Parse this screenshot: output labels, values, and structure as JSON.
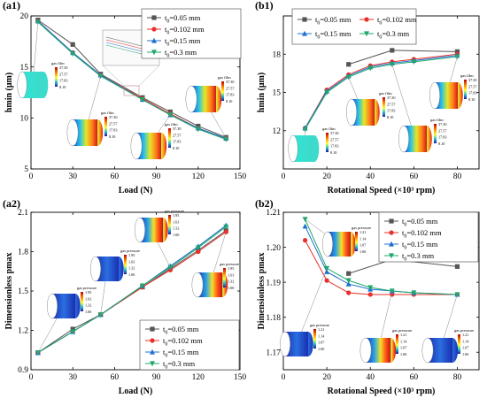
{
  "figure": {
    "colors": {
      "s1": "#555555",
      "s2": "#e8302a",
      "s3": "#1f6fd0",
      "s4": "#1fa86a",
      "axis": "#000000",
      "accent": "#c08080"
    },
    "inset_annotations": {
      "film_label": "gas film",
      "film_ticks": [
        "37.30",
        "27.57",
        "17.83",
        "8.10"
      ],
      "pressure_label": "gas pressure",
      "pressure_ticks_a2": [
        "1.95",
        "1.63",
        "1.32",
        "1.00"
      ],
      "pressure_ticks_b2": [
        "1.21",
        "1.14",
        "1.07",
        "1.00"
      ]
    }
  },
  "chart_data": [
    {
      "type": "line",
      "panel_label": "(a1)",
      "xlabel": "Load (N)",
      "ylabel": "hmin (μm)",
      "xlim": [
        0,
        150
      ],
      "ylim": [
        5,
        20
      ],
      "xticks": [
        0,
        30,
        60,
        90,
        120,
        150
      ],
      "yticks": [
        5,
        10,
        15,
        20
      ],
      "legend_position": "top-right",
      "legend_names": [
        "t0=0.05 mm",
        "t0=0.102 mm",
        "t0=0.15 mm",
        "t0=0.3 mm"
      ],
      "series": [
        {
          "name": "t0=0.05 mm",
          "marker": "square",
          "x": [
            5,
            30,
            50,
            80,
            100,
            120,
            140
          ],
          "values": [
            19.6,
            17.2,
            14.3,
            12.0,
            10.6,
            9.2,
            8.1
          ]
        },
        {
          "name": "t0=0.102 mm",
          "marker": "circle",
          "x": [
            5,
            30,
            50,
            80,
            100,
            120,
            140
          ],
          "values": [
            19.5,
            16.4,
            14.2,
            11.9,
            10.4,
            9.0,
            8.0
          ]
        },
        {
          "name": "t0=0.15 mm",
          "marker": "triangle-up",
          "x": [
            5,
            30,
            50,
            80,
            100,
            120,
            140
          ],
          "values": [
            19.5,
            16.4,
            14.2,
            11.8,
            10.3,
            9.0,
            8.0
          ]
        },
        {
          "name": "t0=0.3 mm",
          "marker": "triangle-down",
          "x": [
            5,
            30,
            50,
            80,
            100,
            120,
            140
          ],
          "values": [
            19.4,
            16.3,
            14.1,
            11.8,
            10.3,
            8.9,
            7.9
          ]
        }
      ]
    },
    {
      "type": "line",
      "panel_label": "(b1)",
      "xlabel": "Rotational Speed (×10³ rpm)",
      "ylabel": "hmin (μm)",
      "xlim": [
        0,
        90
      ],
      "ylim": [
        9,
        21
      ],
      "xticks": [
        0,
        20,
        40,
        60,
        80
      ],
      "yticks": [
        12,
        15,
        18
      ],
      "legend_position": "top",
      "legend_names": [
        "t0=0.05 mm",
        "t0=0.102 mm",
        "t0=0.15 mm",
        "t0=0.3 mm"
      ],
      "series": [
        {
          "name": "t0=0.05 mm",
          "marker": "square",
          "x": [
            30,
            50,
            80
          ],
          "values": [
            17.2,
            18.3,
            18.2
          ]
        },
        {
          "name": "t0=0.102 mm",
          "marker": "circle",
          "x": [
            10,
            20,
            30,
            40,
            50,
            60,
            80
          ],
          "values": [
            12.2,
            15.2,
            16.4,
            17.1,
            17.4,
            17.6,
            18.0
          ]
        },
        {
          "name": "t0=0.15 mm",
          "marker": "triangle-up",
          "x": [
            10,
            20,
            30,
            40,
            50,
            60,
            80
          ],
          "values": [
            12.2,
            15.1,
            16.3,
            17.0,
            17.3,
            17.5,
            17.9
          ]
        },
        {
          "name": "t0=0.3 mm",
          "marker": "triangle-down",
          "x": [
            10,
            20,
            30,
            40,
            50,
            60,
            80
          ],
          "values": [
            12.1,
            15.0,
            16.2,
            16.9,
            17.2,
            17.4,
            17.8
          ]
        }
      ]
    },
    {
      "type": "line",
      "panel_label": "(a2)",
      "xlabel": "Load (N)",
      "ylabel": "Dimensionless pmax",
      "xlim": [
        0,
        150
      ],
      "ylim": [
        0.9,
        2.1
      ],
      "xticks": [
        0,
        30,
        60,
        90,
        120,
        150
      ],
      "yticks": [
        0.9,
        1.2,
        1.5,
        1.8,
        2.1
      ],
      "legend_position": "bottom-right",
      "legend_names": [
        "t0=0.05 mm",
        "t0=0.102 mm",
        "t0=0.15 mm",
        "t0=0.3 mm"
      ],
      "series": [
        {
          "name": "t0=0.05 mm",
          "marker": "square",
          "x": [
            5,
            30,
            50,
            80,
            100,
            120,
            140
          ],
          "values": [
            1.03,
            1.21,
            1.32,
            1.53,
            1.67,
            1.81,
            1.96
          ]
        },
        {
          "name": "t0=0.102 mm",
          "marker": "circle",
          "x": [
            5,
            30,
            50,
            80,
            100,
            120,
            140
          ],
          "values": [
            1.03,
            1.19,
            1.32,
            1.53,
            1.66,
            1.8,
            1.95
          ]
        },
        {
          "name": "t0=0.15 mm",
          "marker": "triangle-up",
          "x": [
            5,
            30,
            50,
            80,
            100,
            120,
            140
          ],
          "values": [
            1.03,
            1.19,
            1.32,
            1.54,
            1.69,
            1.84,
            2.0
          ]
        },
        {
          "name": "t0=0.3 mm",
          "marker": "triangle-down",
          "x": [
            5,
            30,
            50,
            80,
            100,
            120,
            140
          ],
          "values": [
            1.03,
            1.19,
            1.32,
            1.54,
            1.68,
            1.83,
            1.99
          ]
        }
      ]
    },
    {
      "type": "line",
      "panel_label": "(b2)",
      "xlabel": "Rotational Speed (×10³ rpm)",
      "ylabel": "Dimensionless pmax",
      "xlim": [
        0,
        90
      ],
      "ylim": [
        1.165,
        1.21
      ],
      "xticks": [
        0,
        20,
        40,
        60,
        80
      ],
      "yticks": [
        1.17,
        1.18,
        1.19,
        1.2,
        1.21
      ],
      "legend_position": "top-right",
      "legend_names": [
        "t0=0.05 mm",
        "t0=0.102 mm",
        "t0=0.15 mm",
        "t0=0.3 mm"
      ],
      "series": [
        {
          "name": "t0=0.05 mm",
          "marker": "square",
          "x": [
            30,
            50,
            80
          ],
          "values": [
            1.1925,
            1.1965,
            1.1945
          ]
        },
        {
          "name": "t0=0.102 mm",
          "marker": "circle",
          "x": [
            10,
            20,
            30,
            40,
            50,
            60,
            80
          ],
          "values": [
            1.202,
            1.1905,
            1.187,
            1.1865,
            1.1865,
            1.1865,
            1.1865
          ]
        },
        {
          "name": "t0=0.15 mm",
          "marker": "triangle-up",
          "x": [
            10,
            20,
            30,
            40,
            50,
            60,
            80
          ],
          "values": [
            1.206,
            1.193,
            1.1895,
            1.188,
            1.1875,
            1.187,
            1.1865
          ]
        },
        {
          "name": "t0=0.3 mm",
          "marker": "triangle-down",
          "x": [
            10,
            20,
            30,
            40,
            50,
            60,
            80
          ],
          "values": [
            1.208,
            1.194,
            1.1905,
            1.1885,
            1.1875,
            1.187,
            1.1865
          ]
        }
      ]
    }
  ]
}
